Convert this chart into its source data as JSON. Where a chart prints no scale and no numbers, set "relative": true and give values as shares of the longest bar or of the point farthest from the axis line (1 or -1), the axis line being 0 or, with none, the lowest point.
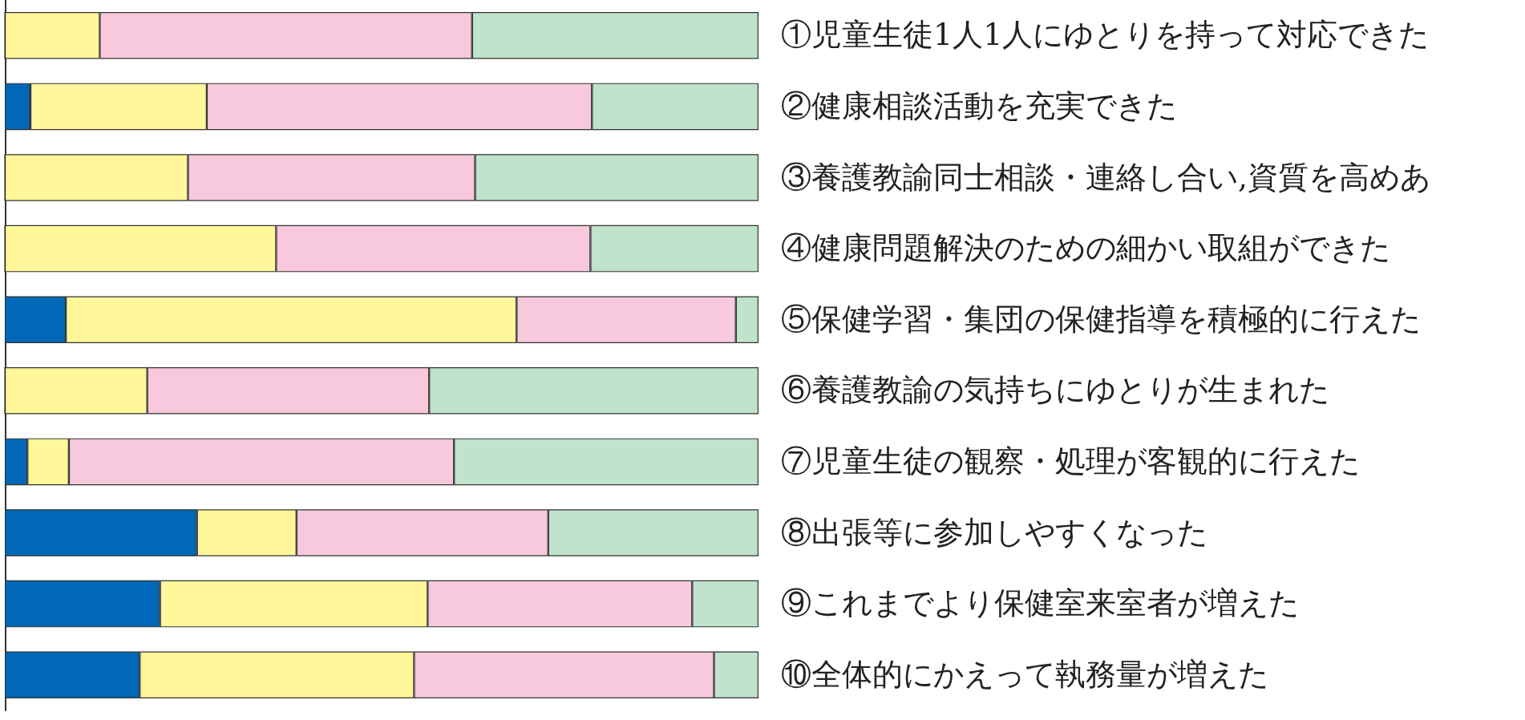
{
  "chart_data": {
    "type": "bar",
    "orientation": "horizontal",
    "stacked": true,
    "relative": true,
    "categories": [
      "①児童生徒1人1人にゆとりを持って対応できた",
      "②健康相談活動を充実できた",
      "③養護教諭同士相談・連絡し合い,資質を高めあ",
      "④健康問題解決のための細かい取組ができた",
      "⑤保健学習・集団の保健指導を積極的に行えた",
      "⑥養護教諭の気持ちにゆとりが生まれた",
      "⑦児童生徒の観察・処理が客観的に行えた",
      "⑧出張等に参加しやすくなった",
      "⑨これまでより保健室来室者が増えた",
      "⑩全体的にかえって執務量が増えた"
    ],
    "series": [
      {
        "color": "#0068b7",
        "values": [
          0,
          0.034,
          0,
          0,
          0.081,
          0,
          0.03,
          0.255,
          0.206,
          0.179
        ]
      },
      {
        "color": "#fff799",
        "values": [
          0.126,
          0.234,
          0.243,
          0.36,
          0.598,
          0.189,
          0.055,
          0.132,
          0.355,
          0.364
        ]
      },
      {
        "color": "#f8c8dc",
        "values": [
          0.494,
          0.511,
          0.381,
          0.417,
          0.291,
          0.374,
          0.511,
          0.334,
          0.351,
          0.398
        ]
      },
      {
        "color": "#c0e3cb",
        "values": [
          0.38,
          0.221,
          0.376,
          0.223,
          0.03,
          0.437,
          0.404,
          0.279,
          0.088,
          0.059
        ]
      }
    ]
  }
}
